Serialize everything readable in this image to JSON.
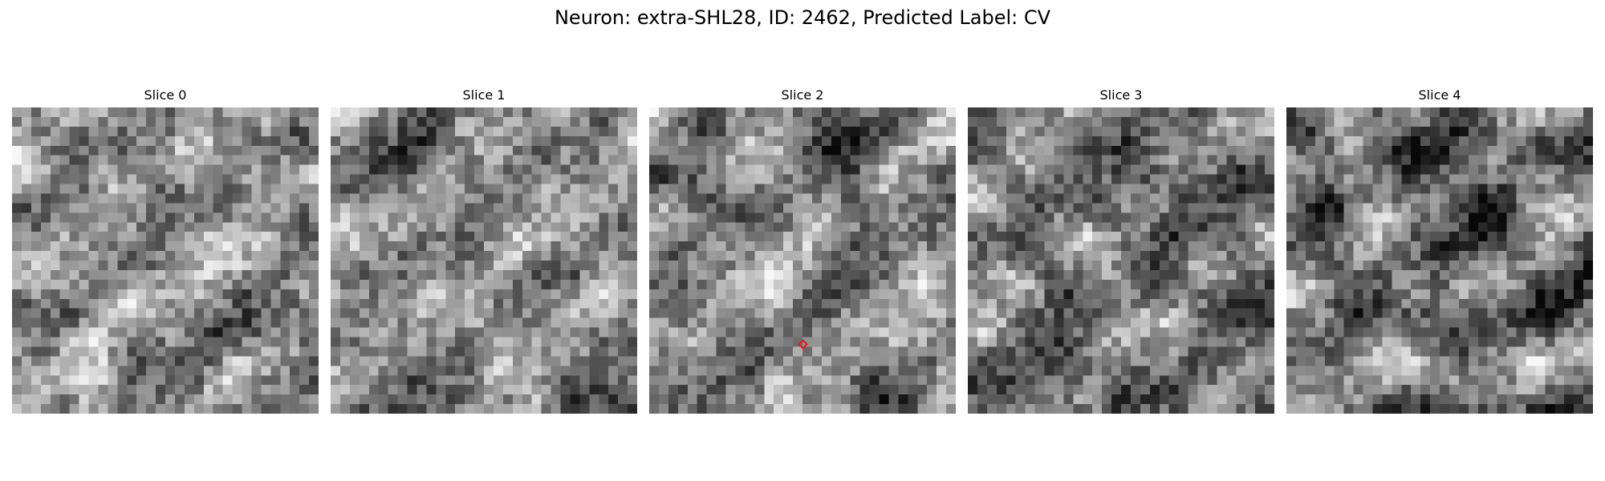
{
  "figure": {
    "title": "Neuron: extra-SHL28, ID: 2462, Predicted Label: CV"
  },
  "slices": [
    {
      "label": "Slice 0",
      "brightness": 0.55
    },
    {
      "label": "Slice 1",
      "brightness": 0.52
    },
    {
      "label": "Slice 2",
      "brightness": 0.5
    },
    {
      "label": "Slice 3",
      "brightness": 0.47
    },
    {
      "label": "Slice 4",
      "brightness": 0.45
    }
  ],
  "grid_cells": 32,
  "marker": {
    "slice": "Slice 2",
    "shape": "diamond",
    "color": "#e8141c"
  },
  "colormap": "gray"
}
